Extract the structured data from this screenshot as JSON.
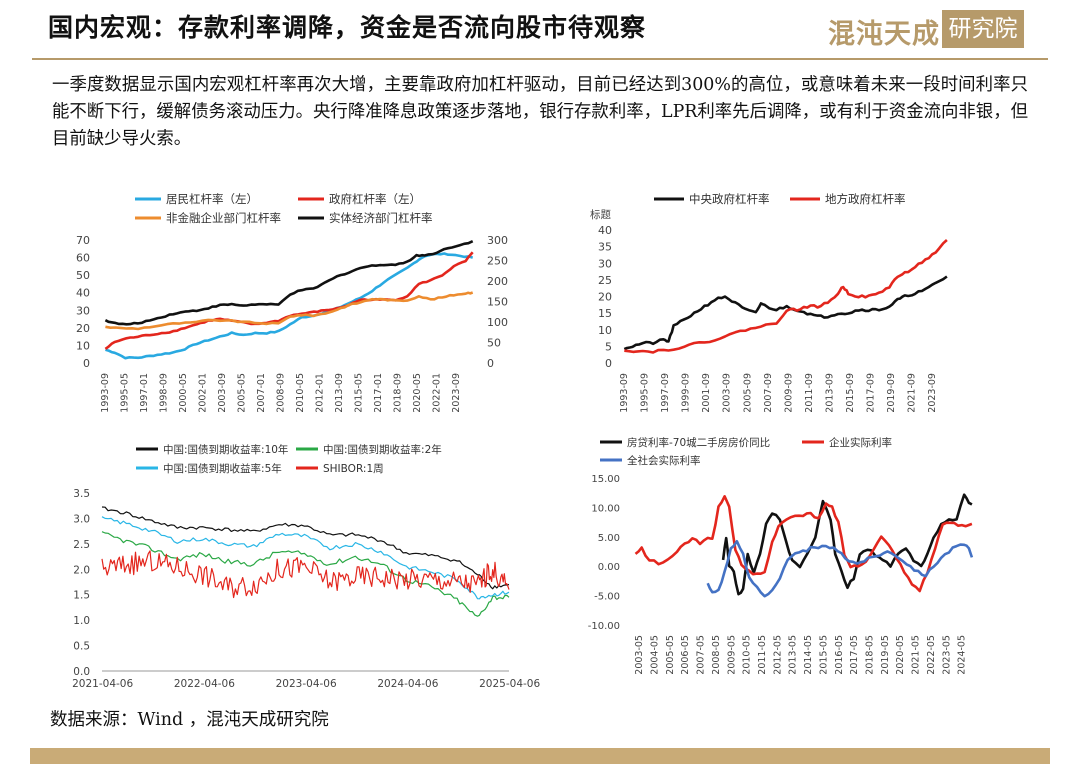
{
  "header": {
    "title": "国内宏观：存款利率调降，资金是否流向股市待观察",
    "logo_main": "混沌天成",
    "logo_box": "研究院"
  },
  "paragraph": "一季度数据显示国内宏观杠杆率再次大增，主要靠政府加杠杆驱动，目前已经达到300%的高位，或意味着未来一段时间利率只能不断下行，缓解债务滚动压力。央行降准降息政策逐步落地，银行存款利率，LPR利率先后调降，或有利于资金流向非银，但目前缺少导火索。",
  "source": "数据来源：Wind ，混沌天成研究院",
  "colors": {
    "accent": "#b69a6a",
    "footer": "#c9ab77"
  },
  "chart_data": [
    {
      "id": "leverage",
      "type": "line",
      "x_ticks": [
        "1993-09",
        "1995-05",
        "1997-01",
        "1998-09",
        "2000-05",
        "2002-01",
        "2003-09",
        "2005-05",
        "2007-01",
        "2008-09",
        "2010-05",
        "2012-01",
        "2013-09",
        "2015-05",
        "2017-01",
        "2018-09",
        "2020-05",
        "2022-01",
        "2023-09"
      ],
      "x_range": [
        1993.67,
        2025.3
      ],
      "ylim_left": [
        0,
        70
      ],
      "yticks_left": [
        "0",
        "10",
        "20",
        "30",
        "40",
        "50",
        "60",
        "70"
      ],
      "ylim_right": [
        0,
        300
      ],
      "yticks_right": [
        "0",
        "50",
        "100",
        "150",
        "200",
        "250",
        "300"
      ],
      "series": [
        {
          "name": "居民杠杆率（左）",
          "color": "#29a9e1",
          "axis": "left",
          "x": [
            1993.7,
            1994.5,
            1995.4,
            1996.5,
            1997.5,
            1998.5,
            1999.5,
            2000.5,
            2001.5,
            2002.5,
            2003.5,
            2004.5,
            2005.5,
            2006.5,
            2007.5,
            2008.5,
            2009.5,
            2010.5,
            2011.5,
            2012.5,
            2013.5,
            2014.5,
            2015.5,
            2016.5,
            2017.5,
            2018.5,
            2019.5,
            2020.3,
            2021.0,
            2022.0,
            2023.0,
            2024.0,
            2025.1
          ],
          "y": [
            7.5,
            6,
            3,
            3,
            4,
            5,
            6,
            8,
            11,
            13,
            15,
            17,
            16,
            17,
            17,
            18,
            22,
            26,
            27,
            29,
            31,
            34,
            37,
            41,
            46,
            50,
            54,
            58,
            61,
            62,
            62,
            61,
            60
          ]
        },
        {
          "name": "政府杠杆率（左）",
          "color": "#e3261d",
          "axis": "left",
          "x": [
            1993.7,
            1994.5,
            1995.5,
            1996.5,
            1997.5,
            1998.5,
            1999.5,
            2000.5,
            2001.5,
            2002.5,
            2003.5,
            2004.5,
            2005.5,
            2006.5,
            2007.5,
            2008.5,
            2009.5,
            2010.5,
            2011.5,
            2012.5,
            2013.5,
            2014.5,
            2015.5,
            2016.5,
            2017.5,
            2018.5,
            2019.5,
            2020.5,
            2021.5,
            2022.5,
            2023.5,
            2024.5,
            2025.1
          ],
          "y": [
            8,
            12,
            14,
            15,
            16,
            17,
            18,
            20,
            22,
            24,
            25,
            24,
            23,
            22,
            23,
            24,
            27,
            28,
            29,
            30,
            31,
            33,
            36,
            36,
            36,
            36,
            38,
            45,
            47,
            50,
            55,
            58,
            63
          ]
        },
        {
          "name": "非金融企业部门杠杆率",
          "color": "#ed8c2f",
          "axis": "right",
          "x": [
            1993.7,
            1995.0,
            1996.5,
            1998.0,
            1999.5,
            2001.0,
            2002.5,
            2004.0,
            2005.5,
            2007.0,
            2008.5,
            2009.5,
            2010.5,
            2011.5,
            2012.5,
            2013.5,
            2014.5,
            2015.5,
            2016.5,
            2017.5,
            2018.5,
            2019.5,
            2020.5,
            2021.5,
            2022.5,
            2023.5,
            2024.5,
            2025.1
          ],
          "y": [
            88,
            85,
            84,
            90,
            96,
            98,
            104,
            104,
            100,
            97,
            96,
            114,
            117,
            116,
            121,
            130,
            141,
            148,
            156,
            155,
            152,
            153,
            163,
            155,
            160,
            166,
            170,
            172
          ]
        },
        {
          "name": "实体经济部门杠杆率",
          "color": "#111111",
          "axis": "right",
          "x": [
            1993.7,
            1994.5,
            1995.5,
            1996.5,
            1997.5,
            1998.5,
            1999.5,
            2000.5,
            2001.5,
            2002.5,
            2003.5,
            2004.5,
            2005.5,
            2006.5,
            2007.5,
            2008.5,
            2009.5,
            2010.5,
            2011.5,
            2012.5,
            2013.5,
            2014.5,
            2015.5,
            2016.5,
            2017.5,
            2018.5,
            2019.5,
            2020.3,
            2021.0,
            2022.0,
            2023.0,
            2024.0,
            2025.1
          ],
          "y": [
            104,
            97,
            94,
            97,
            104,
            112,
            120,
            125,
            128,
            134,
            141,
            143,
            140,
            143,
            143,
            142,
            168,
            178,
            181,
            196,
            211,
            221,
            232,
            237,
            240,
            240,
            246,
            263,
            262,
            269,
            281,
            287,
            297
          ]
        }
      ]
    },
    {
      "id": "gov-leverage",
      "type": "line",
      "ylabel": "标题",
      "x_ticks": [
        "1993-09",
        "1995-09",
        "1997-09",
        "1999-09",
        "2001-09",
        "2003-09",
        "2005-09",
        "2007-09",
        "2009-09",
        "2011-09",
        "2013-09",
        "2015-09",
        "2017-09",
        "2019-09",
        "2021-09",
        "2023-09"
      ],
      "x_range": [
        1993.67,
        2025.3
      ],
      "ylim": [
        0,
        40
      ],
      "yticks": [
        "0",
        "5",
        "10",
        "15",
        "20",
        "25",
        "30",
        "35",
        "40"
      ],
      "series": [
        {
          "name": "中央政府杠杆率",
          "color": "#111111",
          "x": [
            1993.7,
            1994.5,
            1995.5,
            1996.5,
            1997.5,
            1998.0,
            1998.5,
            1999.5,
            2000.5,
            2001.5,
            2002.5,
            2003.5,
            2004.5,
            2005.5,
            2006.5,
            2007.0,
            2007.5,
            2008.5,
            2009.5,
            2010.5,
            2011.5,
            2012.5,
            2013.5,
            2014.5,
            2015.5,
            2016.5,
            2017.5,
            2018.5,
            2019.5,
            2020.3,
            2021.0,
            2022.0,
            2023.0,
            2024.0,
            2025.1
          ],
          "y": [
            4.5,
            5,
            6,
            6,
            7,
            6.5,
            11,
            13,
            15,
            17,
            19,
            20,
            18,
            16,
            15,
            18,
            17,
            16,
            17,
            16,
            15,
            14,
            14,
            15,
            15,
            16,
            16,
            16,
            17,
            19,
            20,
            21,
            22,
            24,
            26
          ]
        },
        {
          "name": "地方政府杠杆率",
          "color": "#e3261d",
          "x": [
            1993.7,
            1995.0,
            1996.5,
            1998.0,
            1999.5,
            2001.0,
            2002.5,
            2004.0,
            2005.5,
            2007.0,
            2008.5,
            2009.5,
            2010.5,
            2011.5,
            2012.5,
            2013.5,
            2014.5,
            2015.0,
            2015.5,
            2016.5,
            2017.5,
            2018.5,
            2019.5,
            2020.3,
            2021.0,
            2022.0,
            2023.0,
            2024.0,
            2025.1
          ],
          "y": [
            4,
            3.5,
            3.5,
            4,
            5,
            6,
            7,
            8.5,
            10,
            11,
            12,
            16,
            16,
            17,
            17,
            18,
            21,
            23,
            21,
            20,
            20,
            21,
            23,
            26,
            27,
            29,
            31,
            33,
            37
          ]
        }
      ]
    },
    {
      "id": "bond-yields",
      "type": "line",
      "x_ticks": [
        "2021-04-06",
        "2022-04-06",
        "2023-04-06",
        "2024-04-06",
        "2025-04-06"
      ],
      "x_range": [
        2021.26,
        2025.26
      ],
      "ylim": [
        0,
        3.5
      ],
      "yticks": [
        "0.0",
        "0.5",
        "1.0",
        "1.5",
        "2.0",
        "2.5",
        "3.0",
        "3.5"
      ],
      "series": [
        {
          "name": "中国:国债到期收益率:10年",
          "color": "#111111",
          "x": [
            2021.26,
            2021.5,
            2021.75,
            2022.0,
            2022.25,
            2022.5,
            2022.75,
            2023.0,
            2023.25,
            2023.5,
            2023.75,
            2024.0,
            2024.25,
            2024.5,
            2024.75,
            2024.95,
            2025.1,
            2025.26
          ],
          "y": [
            3.2,
            3.1,
            2.95,
            2.82,
            2.82,
            2.78,
            2.74,
            2.88,
            2.86,
            2.67,
            2.68,
            2.57,
            2.32,
            2.27,
            2.17,
            1.9,
            1.65,
            1.7
          ]
        },
        {
          "name": "中国:国债到期收益率:2年",
          "color": "#2aa845",
          "x": [
            2021.26,
            2021.5,
            2021.75,
            2022.0,
            2022.25,
            2022.5,
            2022.75,
            2023.0,
            2023.25,
            2023.5,
            2023.75,
            2024.0,
            2024.25,
            2024.5,
            2024.75,
            2024.95,
            2025.1,
            2025.26
          ],
          "y": [
            2.7,
            2.55,
            2.4,
            2.2,
            2.3,
            2.15,
            2.1,
            2.35,
            2.3,
            2.1,
            2.25,
            2.1,
            1.8,
            1.65,
            1.4,
            1.05,
            1.45,
            1.45
          ]
        },
        {
          "name": "中国:国债到期收益率:5年",
          "color": "#29b6e6",
          "x": [
            2021.26,
            2021.5,
            2021.75,
            2022.0,
            2022.25,
            2022.5,
            2022.75,
            2023.0,
            2023.25,
            2023.5,
            2023.75,
            2024.0,
            2024.25,
            2024.5,
            2024.75,
            2024.95,
            2025.1,
            2025.26
          ],
          "y": [
            3.0,
            2.9,
            2.75,
            2.55,
            2.6,
            2.5,
            2.45,
            2.7,
            2.65,
            2.42,
            2.5,
            2.35,
            2.05,
            1.95,
            1.8,
            1.45,
            1.5,
            1.55
          ]
        },
        {
          "name": "SHIBOR:1周",
          "color": "#e3261d",
          "x": [
            2021.26,
            2021.5,
            2021.75,
            2022.0,
            2022.25,
            2022.5,
            2022.75,
            2023.0,
            2023.25,
            2023.5,
            2023.75,
            2024.0,
            2024.25,
            2024.5,
            2024.75,
            2024.95,
            2025.1,
            2025.26
          ],
          "y": [
            2.0,
            2.1,
            2.15,
            2.05,
            1.9,
            1.65,
            1.7,
            2.0,
            2.05,
            1.75,
            1.85,
            1.85,
            1.8,
            1.8,
            1.75,
            1.7,
            2.0,
            1.6
          ]
        }
      ]
    },
    {
      "id": "real-rates",
      "type": "line",
      "x_ticks": [
        "2003-05",
        "2004-05",
        "2005-05",
        "2006-05",
        "2007-05",
        "2008-05",
        "2009-05",
        "2010-05",
        "2011-05",
        "2012-05",
        "2013-05",
        "2014-05",
        "2015-05",
        "2016-05",
        "2017-05",
        "2018-05",
        "2019-05",
        "2020-05",
        "2021-05",
        "2022-05",
        "2023-05",
        "2024-05"
      ],
      "x_range": [
        2003.0,
        2025.2
      ],
      "ylim": [
        -10,
        15
      ],
      "yticks": [
        "-10.00",
        "-5.00",
        "0.00",
        "5.00",
        "10.00",
        "15.00"
      ],
      "series": [
        {
          "name": "房贷利率-70城二手房房价同比",
          "color": "#111111",
          "x": [
            2008.8,
            2009.0,
            2009.2,
            2009.5,
            2009.8,
            2010.1,
            2010.4,
            2010.8,
            2011.2,
            2011.6,
            2012.0,
            2012.5,
            2012.9,
            2013.3,
            2013.8,
            2014.3,
            2014.8,
            2015.3,
            2015.8,
            2016.1,
            2016.5,
            2016.9,
            2017.3,
            2017.7,
            2018.2,
            2018.7,
            2019.2,
            2019.7,
            2020.2,
            2020.7,
            2021.2,
            2021.7,
            2022.1,
            2022.5,
            2023.0,
            2023.5,
            2024.0,
            2024.5,
            2024.8,
            2025.0
          ],
          "y": [
            1,
            5,
            0,
            -1,
            -5,
            -4,
            2,
            -1,
            2,
            7,
            9,
            8,
            4,
            1,
            0,
            2,
            5,
            11,
            8,
            2,
            -1,
            -3.5,
            -2,
            2,
            3,
            2,
            1,
            0,
            2,
            3,
            1,
            0,
            2,
            5,
            7,
            8,
            8,
            12,
            11,
            10.5
          ]
        },
        {
          "name": "企业实际利率",
          "color": "#e3261d",
          "x": [
            2003.1,
            2003.5,
            2004.0,
            2004.6,
            2005.2,
            2005.8,
            2006.3,
            2006.8,
            2007.3,
            2007.8,
            2008.1,
            2008.5,
            2008.9,
            2009.2,
            2009.6,
            2010.0,
            2010.5,
            2011.0,
            2011.5,
            2012.0,
            2012.4,
            2012.9,
            2013.5,
            2014.0,
            2014.5,
            2015.0,
            2015.5,
            2015.9,
            2016.3,
            2016.7,
            2017.1,
            2017.6,
            2018.1,
            2018.6,
            2019.1,
            2019.6,
            2020.1,
            2020.6,
            2021.1,
            2021.6,
            2022.1,
            2022.6,
            2023.1,
            2023.6,
            2024.1,
            2024.6,
            2025.0
          ],
          "y": [
            2,
            3,
            1,
            0.5,
            1,
            2.5,
            4,
            4.5,
            4,
            5,
            4.5,
            10,
            12,
            10,
            3,
            0,
            -1,
            -1.5,
            -1,
            4,
            7,
            8,
            8.5,
            8.5,
            9,
            8,
            10.5,
            10,
            7.5,
            2,
            0,
            0,
            1,
            3,
            5,
            3.5,
            1.5,
            -1,
            -3,
            -4,
            -1,
            3,
            7,
            7.5,
            7,
            7,
            7.2
          ]
        },
        {
          "name": "全社会实际利率",
          "color": "#4472c4",
          "x": [
            2007.8,
            2008.1,
            2008.5,
            2008.9,
            2009.3,
            2009.7,
            2010.1,
            2010.5,
            2011.0,
            2011.5,
            2012.0,
            2012.5,
            2013.0,
            2013.5,
            2014.0,
            2014.5,
            2015.0,
            2015.5,
            2016.0,
            2016.5,
            2017.0,
            2017.5,
            2018.0,
            2018.5,
            2019.0,
            2019.5,
            2020.0,
            2020.5,
            2021.0,
            2021.5,
            2022.0,
            2022.5,
            2023.0,
            2023.5,
            2024.0,
            2024.5,
            2024.8,
            2025.0
          ],
          "y": [
            -3,
            -4.5,
            -4,
            -1,
            3,
            4,
            2,
            -2,
            -3.5,
            -5,
            -4,
            -2,
            1,
            2,
            2.5,
            3,
            3,
            3.5,
            3,
            2,
            1,
            0.5,
            1,
            1.5,
            2,
            2.5,
            2,
            1,
            0,
            -1,
            -1.5,
            0,
            1.5,
            2.5,
            3.5,
            3.5,
            3,
            1.5
          ]
        }
      ]
    }
  ]
}
